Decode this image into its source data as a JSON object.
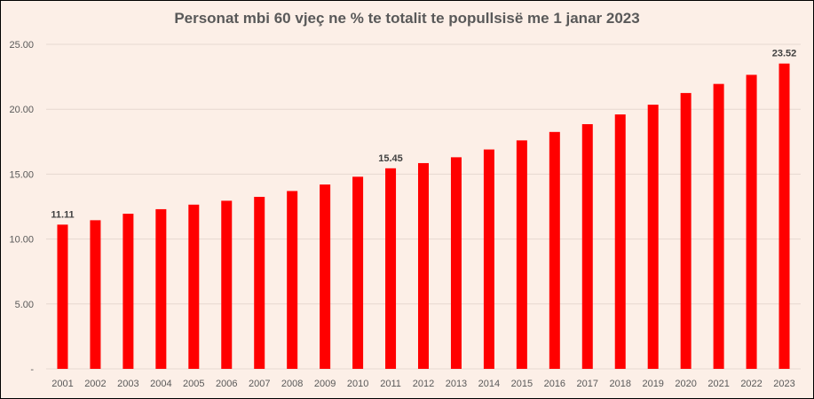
{
  "chart_data": {
    "type": "bar",
    "title": "Personat mbi 60 vjeç ne % te totalit te popullsisë me 1 janar 2023",
    "xlabel": "",
    "ylabel": "",
    "categories": [
      "2001",
      "2002",
      "2003",
      "2004",
      "2005",
      "2006",
      "2007",
      "2008",
      "2009",
      "2010",
      "2011",
      "2012",
      "2013",
      "2014",
      "2015",
      "2016",
      "2017",
      "2018",
      "2019",
      "2020",
      "2021",
      "2022",
      "2023"
    ],
    "values": [
      11.11,
      11.45,
      11.95,
      12.3,
      12.65,
      12.95,
      13.25,
      13.7,
      14.2,
      14.8,
      15.45,
      15.85,
      16.3,
      16.9,
      17.6,
      18.25,
      18.85,
      19.6,
      20.35,
      21.25,
      21.95,
      22.65,
      23.52
    ],
    "data_labels": [
      {
        "category": "2001",
        "text": "11.11"
      },
      {
        "category": "2011",
        "text": "15.45"
      },
      {
        "category": "2023",
        "text": "23.52"
      }
    ],
    "ylim": [
      0,
      25
    ],
    "y_ticks": [
      {
        "value": 0,
        "label": "-"
      },
      {
        "value": 5,
        "label": "5.00"
      },
      {
        "value": 10,
        "label": "10.00"
      },
      {
        "value": 15,
        "label": "15.00"
      },
      {
        "value": 20,
        "label": "20.00"
      },
      {
        "value": 25,
        "label": "25.00"
      }
    ],
    "grid": true,
    "legend": "none",
    "colors": {
      "bar": "#ff0000",
      "grid": "#e6d8d0",
      "background": "#fcefe7"
    }
  }
}
